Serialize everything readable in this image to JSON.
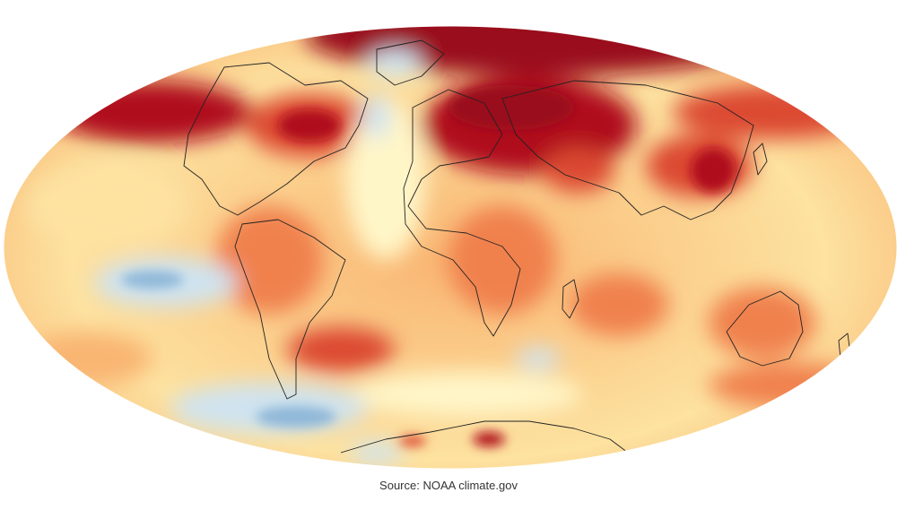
{
  "map": {
    "projection": "hammer-aitoff",
    "variable": "temperature-anomaly",
    "palette": {
      "cool_strong": "#8fb8d8",
      "cool": "#cfe3f0",
      "neutral": "#fff6c8",
      "warm_light": "#fde2a0",
      "warm": "#f9b572",
      "warm_mid": "#f0814e",
      "hot": "#dc4a32",
      "hottest": "#b0101e",
      "extreme": "#9a0a1c",
      "coastline": "#222222"
    }
  },
  "source": {
    "text": "Source: NOAA climate.gov"
  }
}
